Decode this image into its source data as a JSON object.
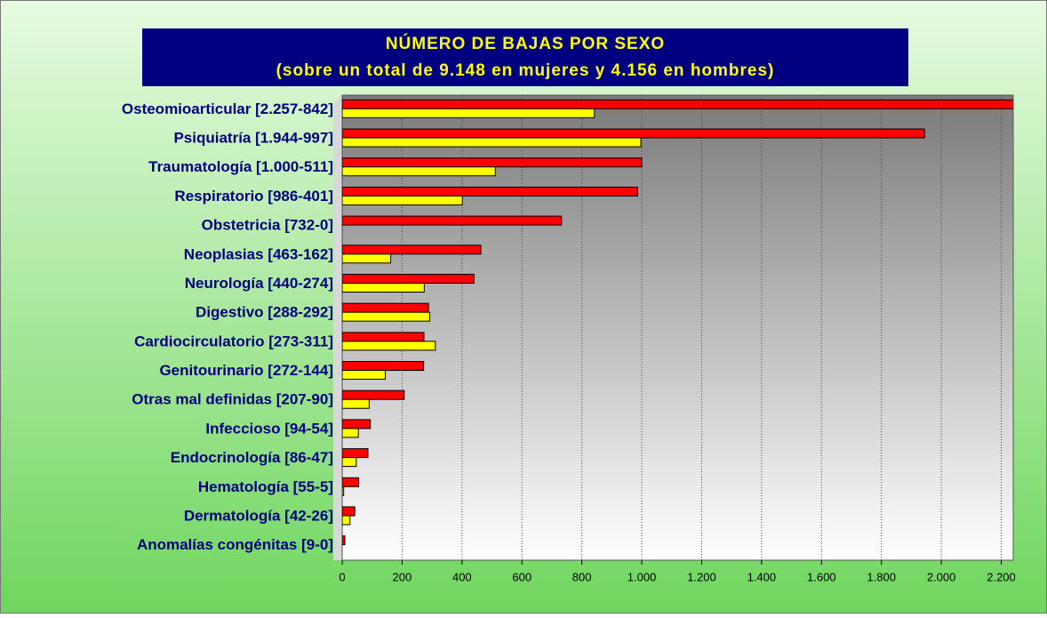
{
  "chart_data": {
    "type": "barh",
    "title": "NÚMERO DE BAJAS POR SEXO",
    "subtitle": "(sobre un total de 9.148 en mujeres y 4.156 en hombres)",
    "categories": [
      "Osteomioarticular [2.257-842]",
      "Psiquiatría [1.944-997]",
      "Traumatología [1.000-511]",
      "Respiratorio [986-401]",
      "Obstetricia [732-0]",
      "Neoplasias [463-162]",
      "Neurología [440-274]",
      "Digestivo [288-292]",
      "Cardiocirculatorio [273-311]",
      "Genitourinario [272-144]",
      "Otras mal definidas [207-90]",
      "Infeccioso [94-54]",
      "Endocrinología [86-47]",
      "Hematología [55-5]",
      "Dermatología [42-26]",
      "Anomalías congénitas [9-0]"
    ],
    "series": [
      {
        "color": "#ff0000",
        "values": [
          2257,
          1944,
          1000,
          986,
          732,
          463,
          440,
          288,
          273,
          272,
          207,
          94,
          86,
          55,
          42,
          9
        ]
      },
      {
        "color": "#ffff00",
        "values": [
          842,
          997,
          511,
          401,
          0,
          162,
          274,
          292,
          311,
          144,
          90,
          54,
          47,
          5,
          26,
          0
        ]
      }
    ],
    "xlim": [
      0,
      2240
    ],
    "xticks": [
      0,
      200,
      400,
      600,
      800,
      {
        "value": 1000,
        "label": "1.000"
      },
      {
        "value": 1200,
        "label": "1.200"
      },
      {
        "value": 1400,
        "label": "1.400"
      },
      {
        "value": 1600,
        "label": "1.600"
      },
      {
        "value": 1800,
        "label": "1.800"
      },
      {
        "value": 2000,
        "label": "2.000"
      },
      {
        "value": 2200,
        "label": "2.200"
      }
    ],
    "grid": true
  }
}
